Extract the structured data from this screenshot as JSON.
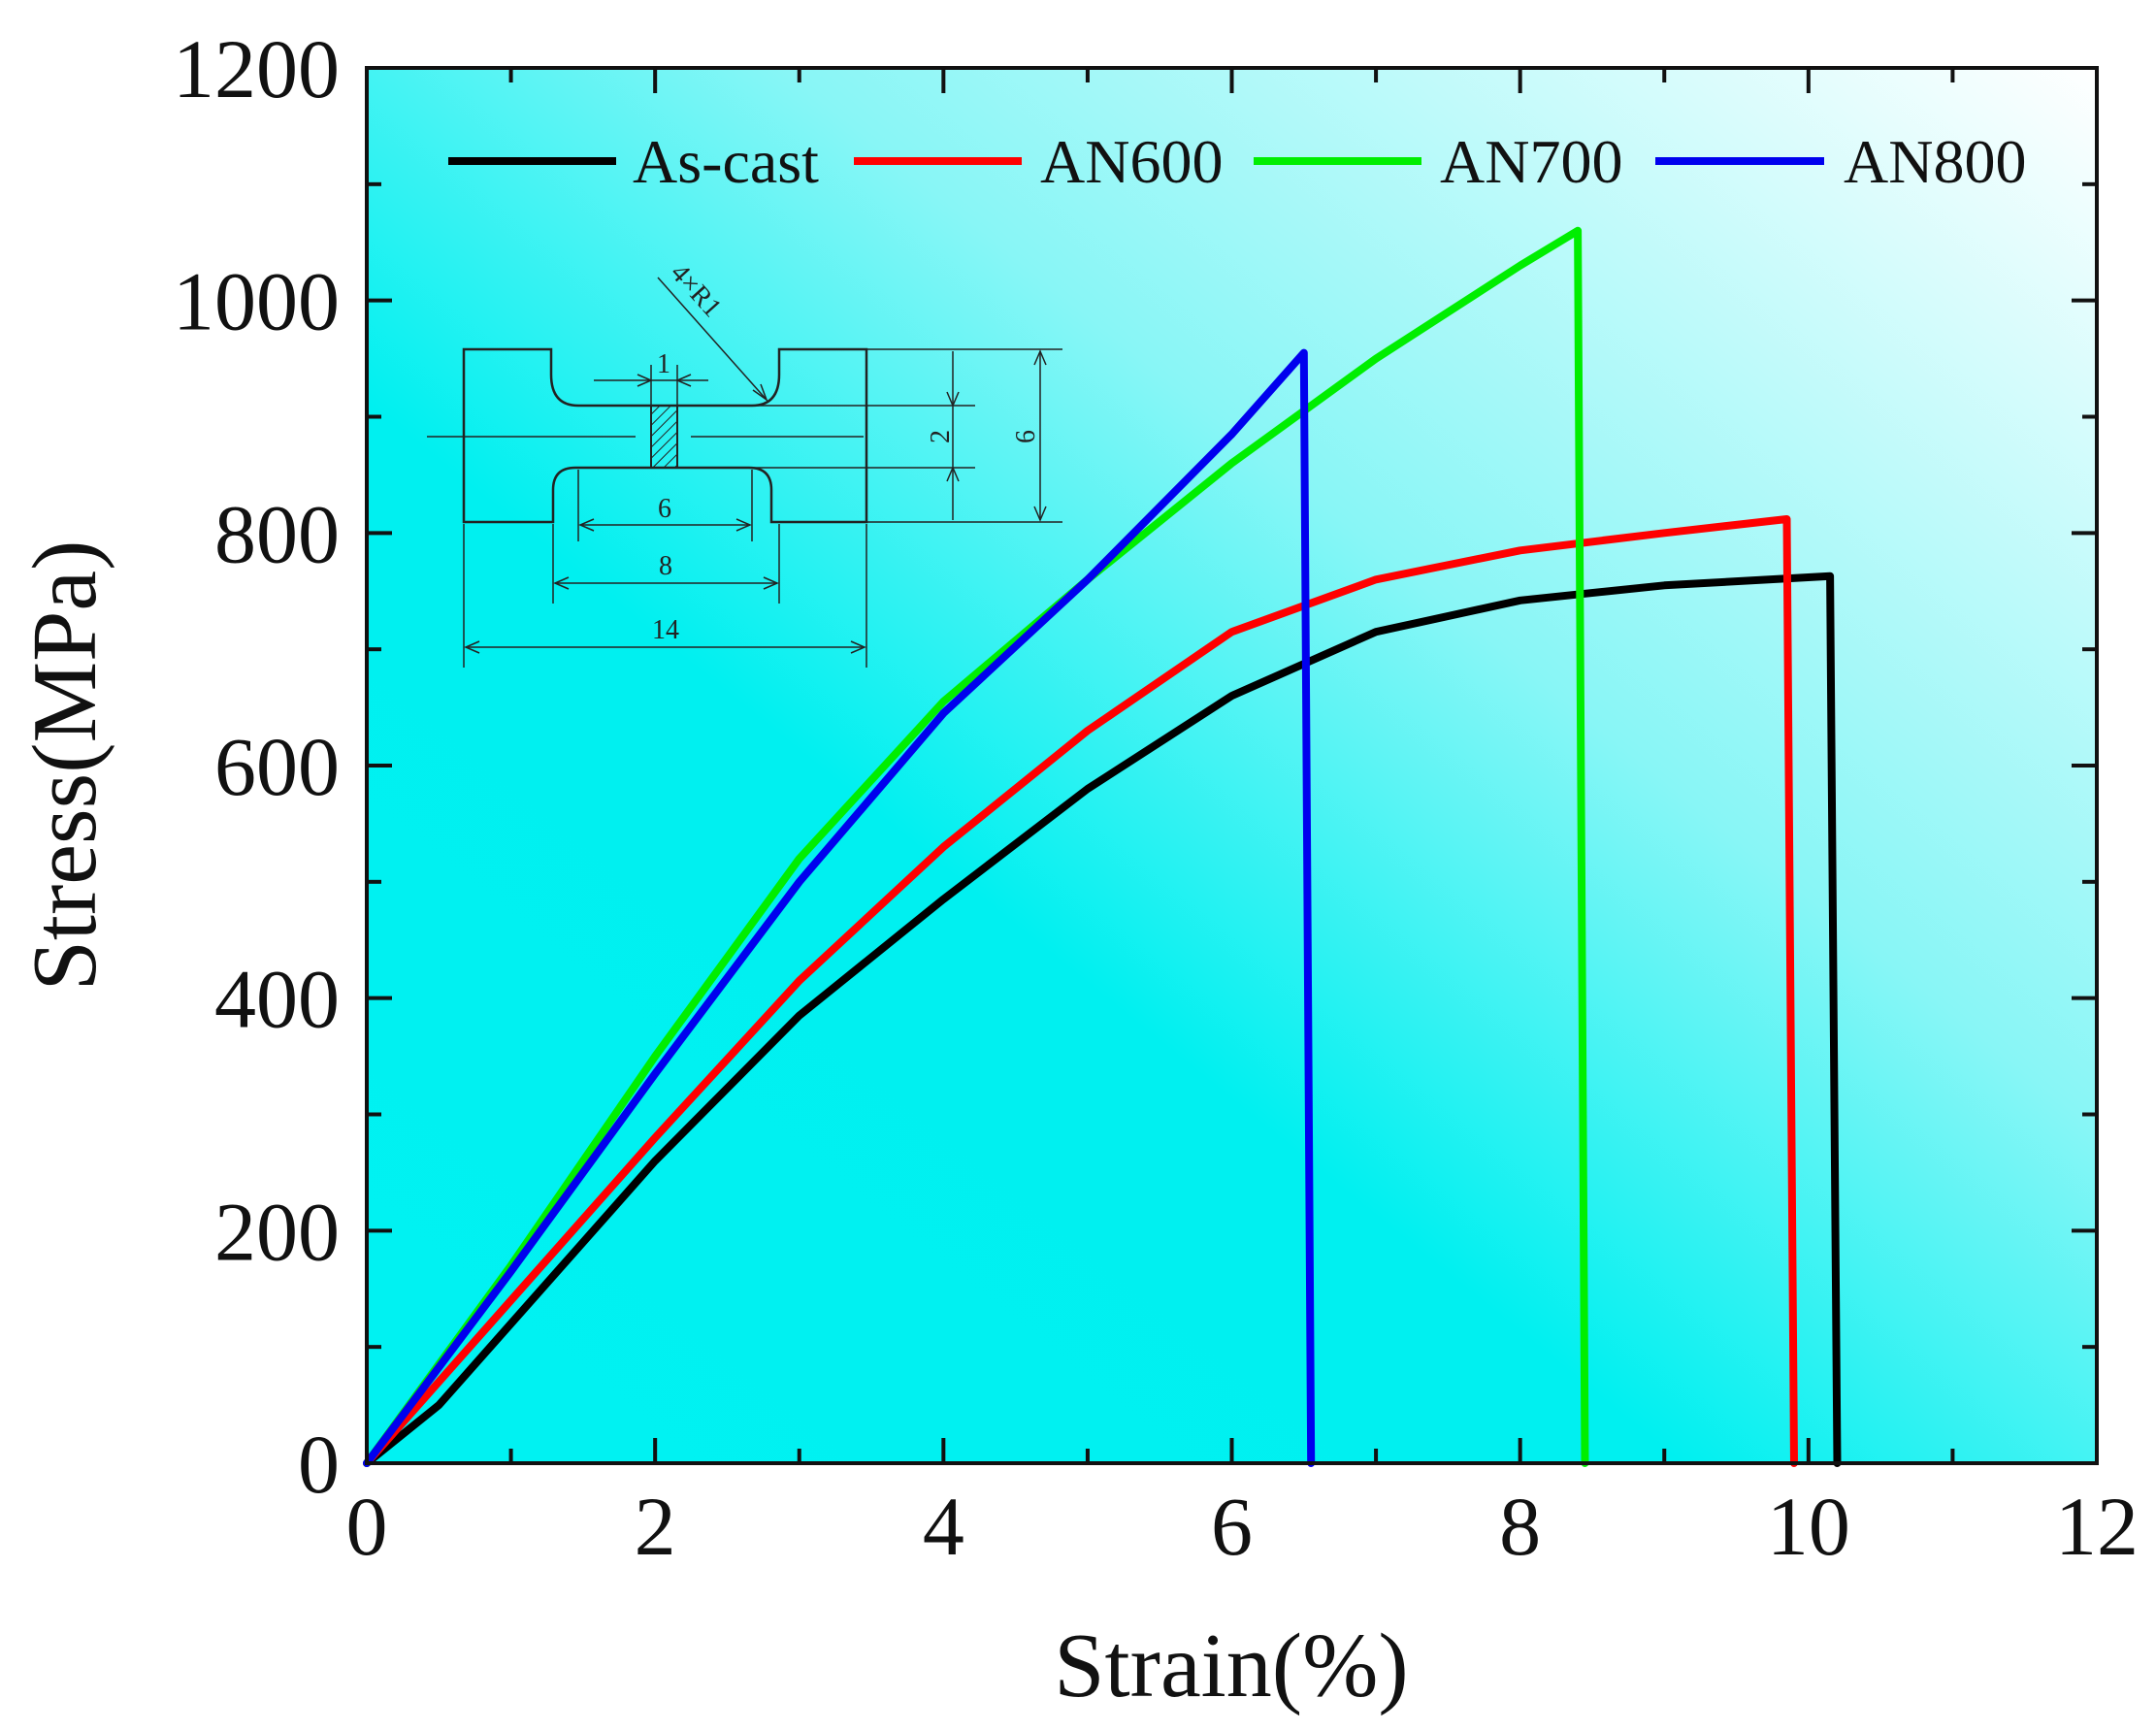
{
  "chart_data": {
    "type": "line",
    "title": "",
    "xlabel": "Strain(%)",
    "ylabel": "Stress(MPa)",
    "xlim": [
      0,
      12
    ],
    "ylim": [
      0,
      1200
    ],
    "xticks": [
      0,
      2,
      4,
      6,
      8,
      10,
      12
    ],
    "yticks": [
      0,
      200,
      400,
      600,
      800,
      1000,
      1200
    ],
    "xtick_labels": [
      "0",
      "2",
      "4",
      "6",
      "8",
      "10",
      "12"
    ],
    "ytick_labels": [
      "0",
      "200",
      "400",
      "600",
      "800",
      "1000",
      "1200"
    ],
    "legend_position": "top",
    "series": [
      {
        "name": "As-cast",
        "color": "#000000",
        "points": [
          [
            0,
            0
          ],
          [
            0.5,
            50
          ],
          [
            1,
            120
          ],
          [
            2,
            260
          ],
          [
            3,
            385
          ],
          [
            4,
            485
          ],
          [
            5,
            580
          ],
          [
            6,
            660
          ],
          [
            7,
            715
          ],
          [
            8,
            742
          ],
          [
            9,
            755
          ],
          [
            10.15,
            763
          ],
          [
            10.2,
            0
          ]
        ]
      },
      {
        "name": "AN600",
        "color": "#ff0000",
        "points": [
          [
            0,
            0
          ],
          [
            1,
            140
          ],
          [
            2,
            280
          ],
          [
            3,
            415
          ],
          [
            4,
            530
          ],
          [
            5,
            630
          ],
          [
            6,
            715
          ],
          [
            7,
            760
          ],
          [
            8,
            785
          ],
          [
            9,
            800
          ],
          [
            9.85,
            812
          ],
          [
            9.9,
            0
          ]
        ]
      },
      {
        "name": "AN700",
        "color": "#00ee00",
        "points": [
          [
            0,
            0
          ],
          [
            1,
            170
          ],
          [
            2,
            350
          ],
          [
            3,
            520
          ],
          [
            4,
            655
          ],
          [
            5,
            760
          ],
          [
            6,
            860
          ],
          [
            7,
            950
          ],
          [
            8,
            1030
          ],
          [
            8.4,
            1060
          ],
          [
            8.45,
            0
          ]
        ]
      },
      {
        "name": "AN800",
        "color": "#0000ee",
        "points": [
          [
            0,
            0
          ],
          [
            1,
            165
          ],
          [
            2,
            335
          ],
          [
            3,
            500
          ],
          [
            4,
            645
          ],
          [
            5,
            760
          ],
          [
            6,
            885
          ],
          [
            6.5,
            955
          ],
          [
            6.55,
            0
          ]
        ]
      }
    ],
    "inset_labels": {
      "radius": "4×R1",
      "gauge_width": "1",
      "gauge_height": "2",
      "total_height": "6",
      "gauge_length": "6",
      "shoulder_length": "8",
      "total_length": "14"
    }
  }
}
